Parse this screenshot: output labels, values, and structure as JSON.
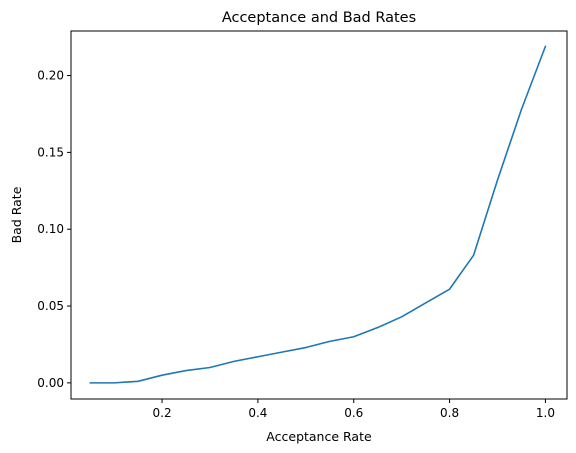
{
  "chart_data": {
    "type": "line",
    "title": "Acceptance and Bad Rates",
    "xlabel": "Acceptance Rate",
    "ylabel": "Bad Rate",
    "xlim": [
      0.01,
      1.045
    ],
    "ylim": [
      -0.0105,
      0.229
    ],
    "xticks": [
      0.2,
      0.4,
      0.6,
      0.8,
      1.0
    ],
    "xtick_labels": [
      "0.2",
      "0.4",
      "0.6",
      "0.8",
      "1.0"
    ],
    "yticks": [
      0.0,
      0.05,
      0.1,
      0.15,
      0.2
    ],
    "ytick_labels": [
      "0.00",
      "0.05",
      "0.10",
      "0.15",
      "0.20"
    ],
    "grid": false,
    "series": [
      {
        "color": "#1f77b4",
        "x": [
          0.05,
          0.1,
          0.15,
          0.2,
          0.25,
          0.3,
          0.35,
          0.4,
          0.45,
          0.5,
          0.55,
          0.6,
          0.65,
          0.7,
          0.75,
          0.8,
          0.85,
          0.9,
          0.95,
          1.0
        ],
        "y": [
          0.0,
          0.0,
          0.001,
          0.005,
          0.008,
          0.01,
          0.014,
          0.017,
          0.02,
          0.023,
          0.027,
          0.03,
          0.036,
          0.043,
          0.052,
          0.061,
          0.083,
          0.132,
          0.178,
          0.219
        ]
      }
    ]
  }
}
